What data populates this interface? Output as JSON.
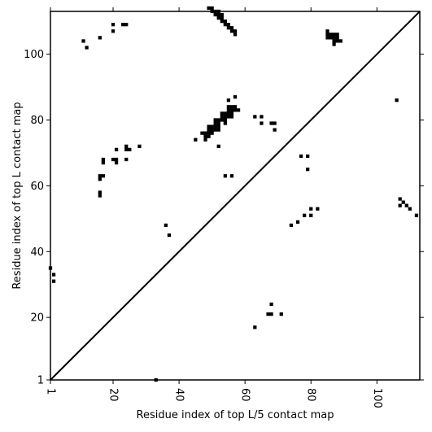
{
  "chart_data": {
    "type": "scatter",
    "title": "",
    "xlabel": "Residue index of top L/5 contact map",
    "ylabel": "Residue index of top L contact map",
    "xlim": [
      1,
      113
    ],
    "ylim": [
      1,
      113
    ],
    "xticks": [
      1,
      20,
      40,
      60,
      80,
      100
    ],
    "yticks": [
      1,
      20,
      40,
      60,
      80,
      100
    ],
    "diagonal": true,
    "grid": false,
    "marker_color": "#000000",
    "series": [
      {
        "points": [
          [
            1,
            35
          ],
          [
            2,
            33
          ],
          [
            2,
            31
          ],
          [
            11,
            104
          ],
          [
            12,
            102
          ],
          [
            16,
            105
          ],
          [
            20,
            109
          ],
          [
            20,
            107
          ],
          [
            23,
            109
          ],
          [
            24,
            109
          ],
          [
            16,
            63
          ],
          [
            17,
            63
          ],
          [
            16,
            62
          ],
          [
            17,
            68
          ],
          [
            17,
            67
          ],
          [
            16,
            58
          ],
          [
            16,
            57
          ],
          [
            20,
            68
          ],
          [
            21,
            68
          ],
          [
            21,
            67
          ],
          [
            21,
            71
          ],
          [
            24,
            72
          ],
          [
            24,
            71
          ],
          [
            25,
            71
          ],
          [
            24,
            68
          ],
          [
            28,
            72
          ],
          [
            33,
            1
          ],
          [
            36,
            48
          ],
          [
            37,
            45
          ],
          [
            45,
            74
          ],
          [
            47,
            76
          ],
          [
            48,
            76
          ],
          [
            48,
            75
          ],
          [
            48,
            74
          ],
          [
            49,
            78
          ],
          [
            49,
            77
          ],
          [
            49,
            76
          ],
          [
            49,
            75
          ],
          [
            50,
            78
          ],
          [
            50,
            77
          ],
          [
            50,
            76
          ],
          [
            51,
            80
          ],
          [
            51,
            79
          ],
          [
            51,
            78
          ],
          [
            51,
            77
          ],
          [
            52,
            80
          ],
          [
            52,
            79
          ],
          [
            52,
            78
          ],
          [
            52,
            77
          ],
          [
            52,
            72
          ],
          [
            53,
            82
          ],
          [
            53,
            81
          ],
          [
            53,
            80
          ],
          [
            54,
            82
          ],
          [
            54,
            81
          ],
          [
            54,
            80
          ],
          [
            54,
            79
          ],
          [
            55,
            84
          ],
          [
            55,
            83
          ],
          [
            55,
            82
          ],
          [
            55,
            81
          ],
          [
            55,
            86
          ],
          [
            56,
            84
          ],
          [
            56,
            83
          ],
          [
            56,
            82
          ],
          [
            56,
            81
          ],
          [
            57,
            84
          ],
          [
            57,
            83
          ],
          [
            57,
            87
          ],
          [
            58,
            83
          ],
          [
            54,
            63
          ],
          [
            56,
            63
          ],
          [
            63,
            81
          ],
          [
            65,
            81
          ],
          [
            65,
            79
          ],
          [
            68,
            79
          ],
          [
            69,
            79
          ],
          [
            69,
            77
          ],
          [
            63,
            17
          ],
          [
            67,
            21
          ],
          [
            68,
            21
          ],
          [
            68,
            24
          ],
          [
            71,
            21
          ],
          [
            74,
            48
          ],
          [
            76,
            49
          ],
          [
            77,
            69
          ],
          [
            78,
            51
          ],
          [
            79,
            69
          ],
          [
            79,
            65
          ],
          [
            80,
            53
          ],
          [
            80,
            51
          ],
          [
            82,
            53
          ],
          [
            49,
            114
          ],
          [
            50,
            114
          ],
          [
            50,
            113
          ],
          [
            51,
            113
          ],
          [
            52,
            113
          ],
          [
            51,
            112
          ],
          [
            52,
            112
          ],
          [
            53,
            112
          ],
          [
            52,
            111
          ],
          [
            53,
            111
          ],
          [
            53,
            110
          ],
          [
            54,
            110
          ],
          [
            54,
            109
          ],
          [
            55,
            109
          ],
          [
            55,
            108
          ],
          [
            56,
            108
          ],
          [
            56,
            107
          ],
          [
            57,
            107
          ],
          [
            57,
            106
          ],
          [
            85,
            107
          ],
          [
            85,
            106
          ],
          [
            86,
            106
          ],
          [
            87,
            106
          ],
          [
            88,
            106
          ],
          [
            85,
            105
          ],
          [
            86,
            105
          ],
          [
            87,
            105
          ],
          [
            88,
            105
          ],
          [
            87,
            104
          ],
          [
            88,
            104
          ],
          [
            89,
            104
          ],
          [
            87,
            103
          ],
          [
            106,
            86
          ],
          [
            107,
            56
          ],
          [
            108,
            55
          ],
          [
            107,
            54
          ],
          [
            109,
            54
          ],
          [
            110,
            53
          ],
          [
            112,
            51
          ]
        ]
      }
    ]
  }
}
